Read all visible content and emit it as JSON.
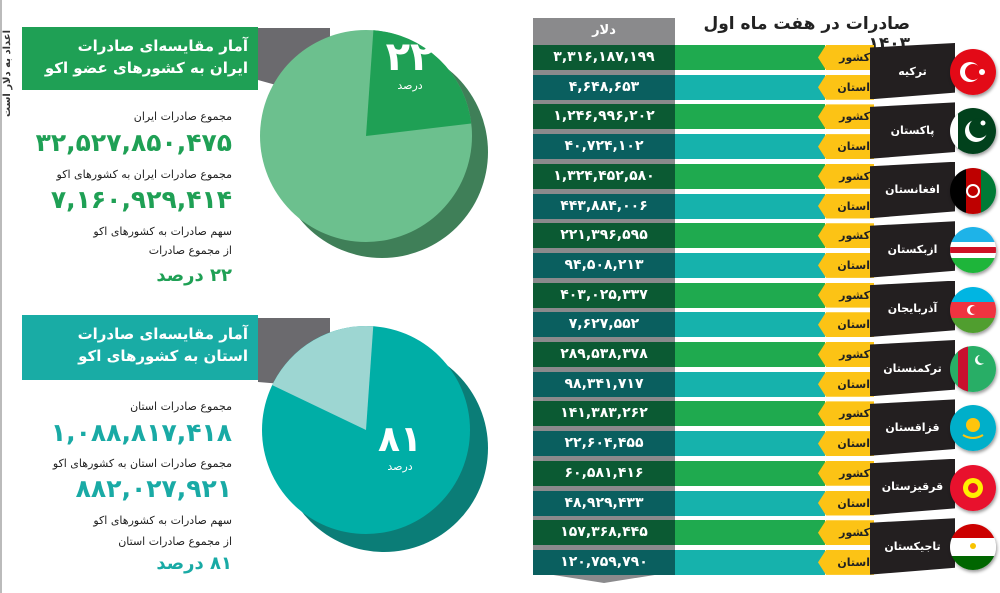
{
  "note": "اعداد به دلار است",
  "iran": {
    "title1": "آمار مقایسه‌ای صادرات",
    "title2": "ایران به کشورهای عضو اکو",
    "pie_value": "۲۲",
    "pie_unit": "درصد",
    "l1": "مجموع صادرات ایران",
    "v1": "۳۲,۵۲۷,۸۵۰,۴۷۵",
    "l2": "مجموع صادرات ایران به کشورهای اکو",
    "v2": "۷,۱۶۰,۹۲۹,۴۱۴",
    "l3a": "سهم صادرات به کشورهای اکو",
    "l3b": "از مجموع صادرات",
    "v3": "۲۲ درصد"
  },
  "prov": {
    "title1": "آمار مقایسه‌ای صادرات",
    "title2": "استان به کشورهای اکو",
    "pie_value": "۸۱",
    "pie_unit": "درصد",
    "l1": "مجموع صادرات استان",
    "v1": "۱,۰۸۸,۸۱۷,۴۱۸",
    "l2": "مجموع صادرات استان به کشورهای اکو",
    "v2": "۸۸۲,۰۲۷,۹۲۱",
    "l3a": "سهم صادرات به کشورهای اکو",
    "l3b": "از مجموع صادرات  استان",
    "v3": "۸۱ درصد"
  },
  "table": {
    "title": "صادرات در هفت ماه اول ۱۴۰۳",
    "unit": "دلار",
    "country_label": "کشور",
    "province_label": "استان",
    "rows": [
      {
        "name": "ترکیه",
        "flag": "turkey",
        "country": "۳,۳۱۶,۱۸۷,۱۹۹",
        "province": "۴,۶۴۸,۶۵۳"
      },
      {
        "name": "پاکستان",
        "flag": "pakistan",
        "country": "۱,۲۴۶,۹۹۶,۲۰۲",
        "province": "۴۰,۷۲۴,۱۰۲"
      },
      {
        "name": "افغانستان",
        "flag": "afghanistan",
        "country": "۱,۳۲۴,۴۵۲,۵۸۰",
        "province": "۴۴۳,۸۸۴,۰۰۶"
      },
      {
        "name": "ازبکستان",
        "flag": "uzbekistan",
        "country": "۲۲۱,۳۹۶,۵۹۵",
        "province": "۹۴,۵۰۸,۲۱۳"
      },
      {
        "name": "آذربایجان",
        "flag": "azerbaijan",
        "country": "۴۰۳,۰۲۵,۳۳۷",
        "province": "۷,۶۲۷,۵۵۲"
      },
      {
        "name": "ترکمنستان",
        "flag": "turkmenistan",
        "country": "۲۸۹,۵۳۸,۳۷۸",
        "province": "۹۸,۳۴۱,۷۱۷"
      },
      {
        "name": "قزاقستان",
        "flag": "kazakhstan",
        "country": "۱۴۱,۳۸۳,۲۶۲",
        "province": "۲۲,۶۰۴,۴۵۵"
      },
      {
        "name": "قرقیزستان",
        "flag": "kyrgyzstan",
        "country": "۶۰,۵۸۱,۴۱۶",
        "province": "۴۸,۹۲۹,۴۳۳"
      },
      {
        "name": "تاجیکستان",
        "flag": "tajikistan",
        "country": "۱۵۷,۳۶۸,۴۴۵",
        "province": "۱۲۰,۷۵۹,۷۹۰"
      }
    ]
  },
  "chart_data": [
    {
      "type": "pie",
      "slices": [
        {
          "label": "کشورهای اکو",
          "value": 22
        },
        {
          "label": "other",
          "value": 78
        }
      ],
      "colors": [
        "#1fa055",
        "#6cc08e"
      ]
    },
    {
      "type": "pie",
      "slices": [
        {
          "label": "کشورهای اکو",
          "value": 81
        },
        {
          "label": "other",
          "value": 19
        }
      ],
      "colors": [
        "#00aea6",
        "#9dd6d2"
      ]
    },
    {
      "type": "table",
      "columns": [
        "کشور",
        "نوع",
        "دلار"
      ],
      "note": "see table.rows"
    }
  ],
  "colors": {
    "green": "#1fa055",
    "teal": "#00aea6",
    "yellow": "#fcc315",
    "dark_green": "#0b5a33",
    "dark_teal": "#0a5f5f"
  }
}
